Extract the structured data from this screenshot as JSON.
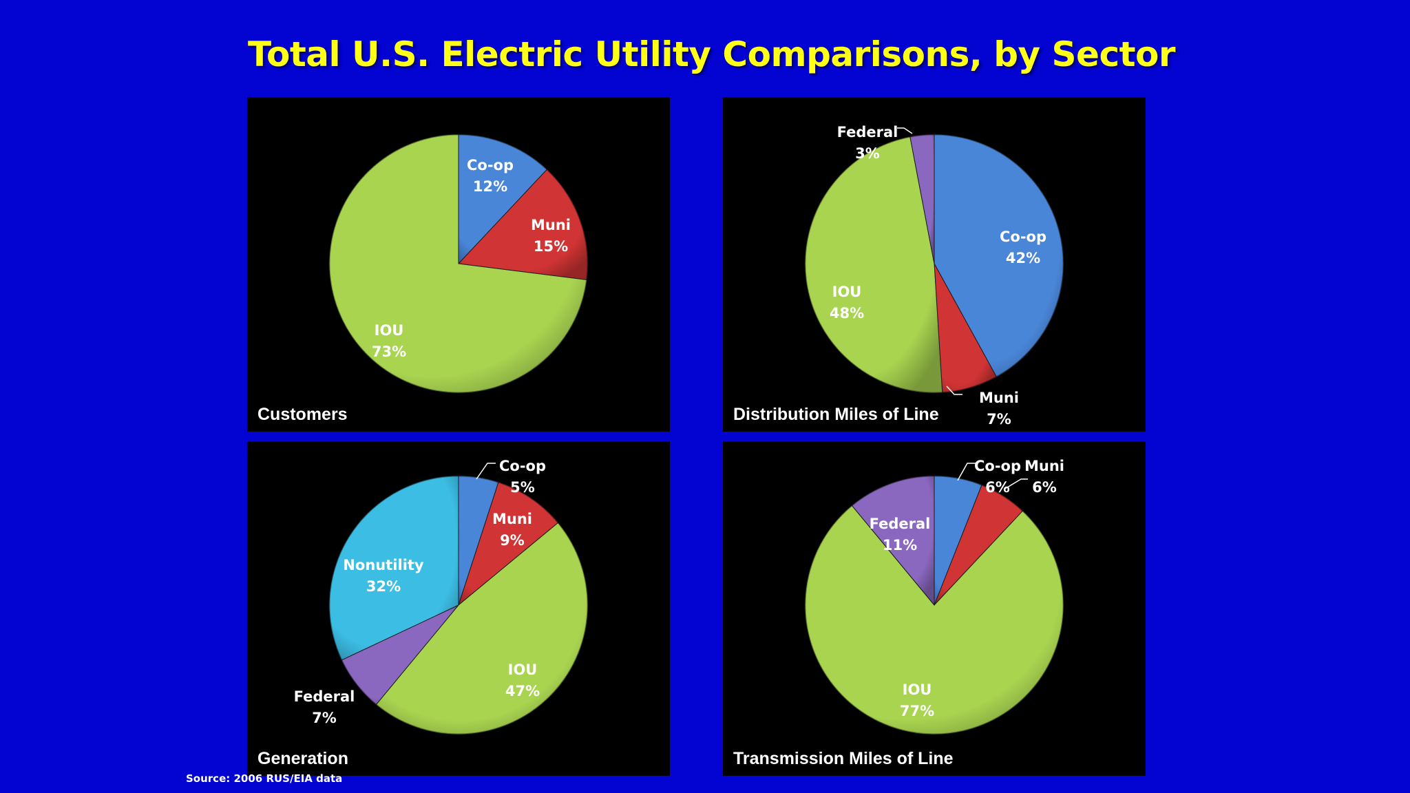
{
  "slide": {
    "title": "Total U.S. Electric Utility Comparisons, by Sector",
    "source": "Source:  2006 RUS/EIA data"
  },
  "colors": {
    "background": "#0303d2",
    "title": "#ffff17",
    "Co-op": "#4a86d8",
    "Muni": "#d03434",
    "IOU": "#a8d450",
    "Federal": "#8a68c0",
    "Nonutility": "#3cbde4"
  },
  "chart_data": [
    {
      "type": "pie",
      "title": "Customers",
      "slices": [
        {
          "name": "Co-op",
          "value": 12,
          "label": "12%"
        },
        {
          "name": "Muni",
          "value": 15,
          "label": "15%"
        },
        {
          "name": "IOU",
          "value": 73,
          "label": "73%"
        }
      ]
    },
    {
      "type": "pie",
      "title": "Distribution Miles of Line",
      "slices": [
        {
          "name": "Co-op",
          "value": 42,
          "label": "42%"
        },
        {
          "name": "Muni",
          "value": 7,
          "label": "7%"
        },
        {
          "name": "IOU",
          "value": 48,
          "label": "48%"
        },
        {
          "name": "Federal",
          "value": 3,
          "label": "3%"
        }
      ]
    },
    {
      "type": "pie",
      "title": "Generation",
      "slices": [
        {
          "name": "Co-op",
          "value": 5,
          "label": "5%"
        },
        {
          "name": "Muni",
          "value": 9,
          "label": "9%"
        },
        {
          "name": "IOU",
          "value": 47,
          "label": "47%"
        },
        {
          "name": "Federal",
          "value": 7,
          "label": "7%"
        },
        {
          "name": "Nonutility",
          "value": 32,
          "label": "32%"
        }
      ]
    },
    {
      "type": "pie",
      "title": "Transmission Miles of Line",
      "slices": [
        {
          "name": "Co-op",
          "value": 6,
          "label": "6%"
        },
        {
          "name": "Muni",
          "value": 6,
          "label": "6%"
        },
        {
          "name": "IOU",
          "value": 77,
          "label": "77%"
        },
        {
          "name": "Federal",
          "value": 11,
          "label": "11%"
        }
      ]
    }
  ]
}
